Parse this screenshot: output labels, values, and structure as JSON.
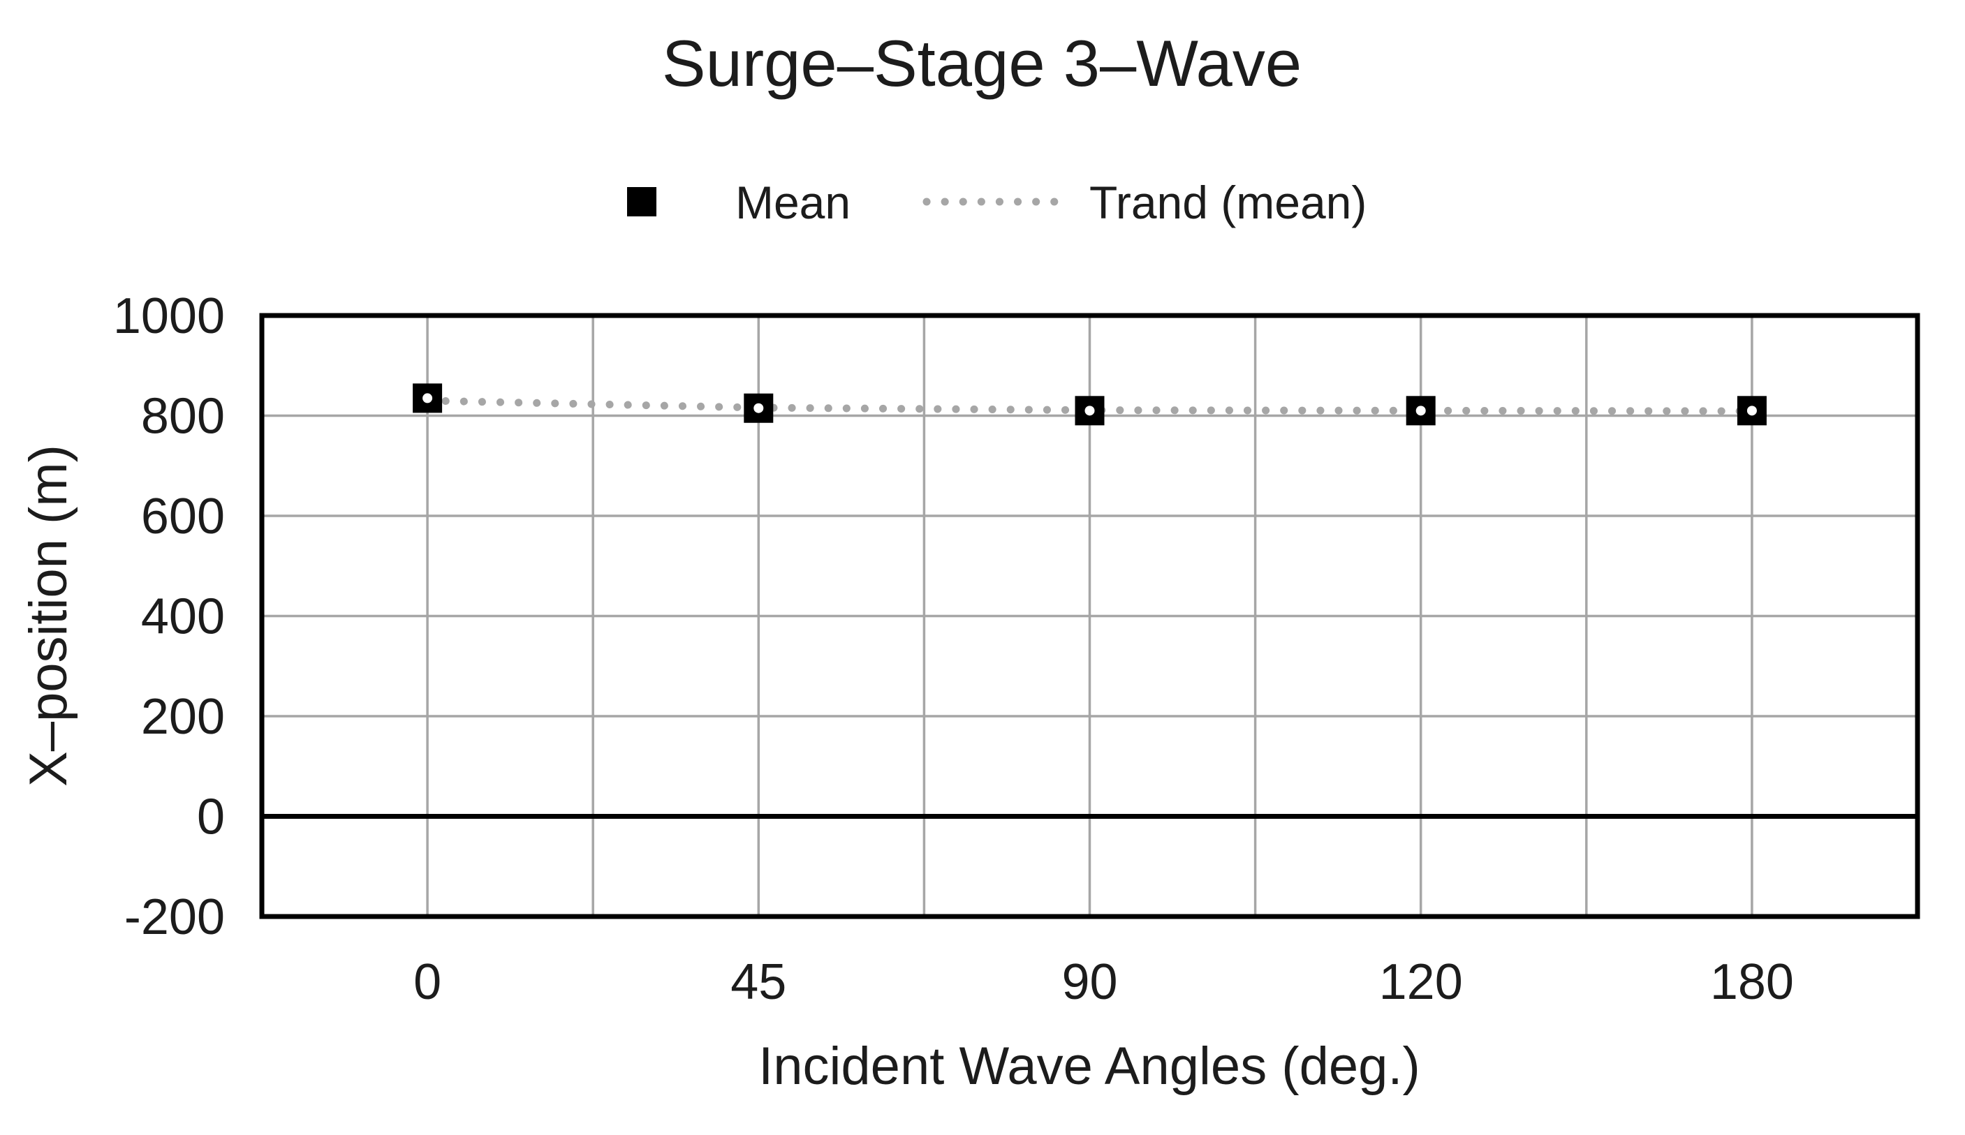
{
  "page": {
    "background": "#ffffff"
  },
  "chart_data": {
    "type": "scatter",
    "title": "Surge–Stage 3–Wave",
    "xlabel": "Incident Wave Angles (deg.)",
    "ylabel": "X–position (m)",
    "categories": [
      "0",
      "45",
      "90",
      "120",
      "180"
    ],
    "series": [
      {
        "name": "Mean",
        "type": "scatter",
        "marker": "filled-square-with-white-dot",
        "color": "#000000",
        "values": [
          835,
          815,
          810,
          810,
          810
        ]
      },
      {
        "name": "Trand (mean)",
        "type": "trendline",
        "style": "dotted",
        "color": "#a6a6a6",
        "values": [
          830,
          816,
          811,
          810,
          809
        ]
      }
    ],
    "ylim": [
      -200,
      1000
    ],
    "yticks": [
      1000,
      800,
      600,
      400,
      200,
      0,
      -200
    ],
    "ytick_step": 200,
    "grid": true,
    "grid_x_subdivisions": 2,
    "legend_position": "top-center",
    "zero_line": true
  },
  "colors": {
    "text": "#1c1c1c",
    "gridline": "#a6a6a6",
    "trend": "#a6a6a6",
    "marker": "#000000",
    "marker_dot": "#ffffff",
    "border": "#000000",
    "zero_line": "#000000"
  }
}
